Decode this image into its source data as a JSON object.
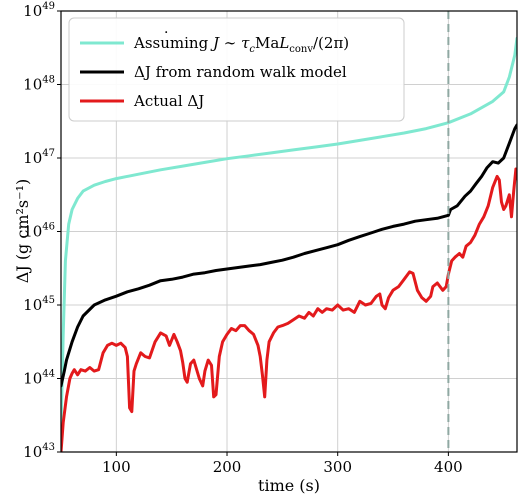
{
  "chart_data": {
    "type": "line",
    "title": "",
    "xlabel": "time (s)",
    "ylabel": "ΔJ (g cm²s⁻¹)",
    "xlim": [
      50,
      462
    ],
    "ylim_log10": [
      43,
      49
    ],
    "y_scale": "log",
    "grid": true,
    "legend_position": "top-left",
    "x_ticks": [
      100,
      200,
      300,
      400
    ],
    "y_ticks": [
      {
        "exp": 43,
        "label": "10",
        "sup": "43"
      },
      {
        "exp": 44,
        "label": "10",
        "sup": "44"
      },
      {
        "exp": 45,
        "label": "10",
        "sup": "45"
      },
      {
        "exp": 46,
        "label": "10",
        "sup": "46"
      },
      {
        "exp": 47,
        "label": "10",
        "sup": "47"
      },
      {
        "exp": 48,
        "label": "10",
        "sup": "48"
      },
      {
        "exp": 49,
        "label": "10",
        "sup": "49"
      }
    ],
    "vline": {
      "x": 400,
      "color": "#8fa8a2",
      "style": "dashed"
    },
    "series": [
      {
        "name": "Assuming J̇ ∼ τcMaLconv/(2π)",
        "color": "#7fe8d0",
        "points": [
          [
            50,
            43.3
          ],
          [
            52,
            44.6
          ],
          [
            54,
            45.6
          ],
          [
            57,
            46.1
          ],
          [
            60,
            46.3
          ],
          [
            65,
            46.45
          ],
          [
            70,
            46.55
          ],
          [
            80,
            46.63
          ],
          [
            90,
            46.68
          ],
          [
            100,
            46.72
          ],
          [
            120,
            46.78
          ],
          [
            140,
            46.84
          ],
          [
            160,
            46.89
          ],
          [
            180,
            46.94
          ],
          [
            200,
            46.99
          ],
          [
            220,
            47.03
          ],
          [
            240,
            47.07
          ],
          [
            260,
            47.11
          ],
          [
            280,
            47.15
          ],
          [
            300,
            47.19
          ],
          [
            320,
            47.24
          ],
          [
            340,
            47.29
          ],
          [
            360,
            47.34
          ],
          [
            380,
            47.4
          ],
          [
            400,
            47.48
          ],
          [
            420,
            47.6
          ],
          [
            440,
            47.77
          ],
          [
            450,
            47.9
          ],
          [
            455,
            48.1
          ],
          [
            460,
            48.4
          ],
          [
            462,
            48.63
          ]
        ]
      },
      {
        "name": "ΔJ from random walk model",
        "color": "#000000",
        "points": [
          [
            50,
            43.9
          ],
          [
            53,
            44.1
          ],
          [
            55,
            44.25
          ],
          [
            60,
            44.5
          ],
          [
            65,
            44.7
          ],
          [
            70,
            44.85
          ],
          [
            80,
            45.0
          ],
          [
            90,
            45.07
          ],
          [
            100,
            45.12
          ],
          [
            110,
            45.18
          ],
          [
            120,
            45.22
          ],
          [
            130,
            45.27
          ],
          [
            140,
            45.33
          ],
          [
            150,
            45.35
          ],
          [
            160,
            45.38
          ],
          [
            170,
            45.42
          ],
          [
            180,
            45.44
          ],
          [
            190,
            45.47
          ],
          [
            200,
            45.49
          ],
          [
            210,
            45.51
          ],
          [
            220,
            45.53
          ],
          [
            230,
            45.55
          ],
          [
            240,
            45.58
          ],
          [
            250,
            45.61
          ],
          [
            260,
            45.65
          ],
          [
            270,
            45.7
          ],
          [
            280,
            45.74
          ],
          [
            290,
            45.78
          ],
          [
            300,
            45.82
          ],
          [
            310,
            45.88
          ],
          [
            320,
            45.93
          ],
          [
            330,
            45.98
          ],
          [
            340,
            46.03
          ],
          [
            350,
            46.07
          ],
          [
            360,
            46.1
          ],
          [
            370,
            46.14
          ],
          [
            380,
            46.16
          ],
          [
            390,
            46.18
          ],
          [
            400,
            46.22
          ],
          [
            402,
            46.3
          ],
          [
            408,
            46.35
          ],
          [
            415,
            46.48
          ],
          [
            420,
            46.55
          ],
          [
            425,
            46.65
          ],
          [
            430,
            46.75
          ],
          [
            435,
            46.87
          ],
          [
            440,
            46.95
          ],
          [
            445,
            46.93
          ],
          [
            450,
            47.0
          ],
          [
            455,
            47.2
          ],
          [
            460,
            47.4
          ],
          [
            462,
            47.45
          ]
        ]
      },
      {
        "name": "Actual ΔJ",
        "color": "#e31a1c",
        "points": [
          [
            50,
            43.0
          ],
          [
            52,
            43.4
          ],
          [
            55,
            43.75
          ],
          [
            58,
            44.0
          ],
          [
            60,
            44.07
          ],
          [
            62,
            44.12
          ],
          [
            65,
            44.05
          ],
          [
            68,
            44.12
          ],
          [
            72,
            44.1
          ],
          [
            76,
            44.15
          ],
          [
            80,
            44.1
          ],
          [
            84,
            44.12
          ],
          [
            88,
            44.35
          ],
          [
            92,
            44.45
          ],
          [
            96,
            44.48
          ],
          [
            100,
            44.45
          ],
          [
            104,
            44.48
          ],
          [
            108,
            44.42
          ],
          [
            110,
            44.3
          ],
          [
            112,
            43.6
          ],
          [
            114,
            43.55
          ],
          [
            116,
            44.1
          ],
          [
            118,
            44.2
          ],
          [
            122,
            44.35
          ],
          [
            126,
            44.3
          ],
          [
            130,
            44.28
          ],
          [
            135,
            44.5
          ],
          [
            140,
            44.62
          ],
          [
            145,
            44.58
          ],
          [
            148,
            44.45
          ],
          [
            152,
            44.6
          ],
          [
            155,
            44.5
          ],
          [
            158,
            44.38
          ],
          [
            160,
            44.22
          ],
          [
            162,
            44.0
          ],
          [
            164,
            43.95
          ],
          [
            167,
            44.2
          ],
          [
            170,
            44.25
          ],
          [
            175,
            44.0
          ],
          [
            178,
            43.9
          ],
          [
            180,
            44.1
          ],
          [
            183,
            44.25
          ],
          [
            186,
            44.18
          ],
          [
            188,
            43.75
          ],
          [
            190,
            43.78
          ],
          [
            193,
            44.3
          ],
          [
            196,
            44.5
          ],
          [
            200,
            44.6
          ],
          [
            204,
            44.68
          ],
          [
            208,
            44.65
          ],
          [
            212,
            44.72
          ],
          [
            216,
            44.72
          ],
          [
            220,
            44.65
          ],
          [
            224,
            44.6
          ],
          [
            228,
            44.45
          ],
          [
            230,
            44.3
          ],
          [
            232,
            44.05
          ],
          [
            234,
            43.75
          ],
          [
            236,
            44.25
          ],
          [
            238,
            44.5
          ],
          [
            242,
            44.62
          ],
          [
            246,
            44.7
          ],
          [
            250,
            44.72
          ],
          [
            255,
            44.75
          ],
          [
            260,
            44.8
          ],
          [
            265,
            44.85
          ],
          [
            270,
            44.82
          ],
          [
            274,
            44.9
          ],
          [
            278,
            44.85
          ],
          [
            282,
            44.95
          ],
          [
            286,
            44.9
          ],
          [
            290,
            44.95
          ],
          [
            295,
            44.93
          ],
          [
            300,
            45.0
          ],
          [
            305,
            44.93
          ],
          [
            310,
            44.95
          ],
          [
            315,
            44.9
          ],
          [
            320,
            45.05
          ],
          [
            325,
            45.0
          ],
          [
            330,
            45.02
          ],
          [
            335,
            45.12
          ],
          [
            338,
            45.15
          ],
          [
            340,
            45.0
          ],
          [
            343,
            44.95
          ],
          [
            346,
            45.1
          ],
          [
            350,
            45.2
          ],
          [
            355,
            45.25
          ],
          [
            360,
            45.35
          ],
          [
            365,
            45.45
          ],
          [
            368,
            45.43
          ],
          [
            372,
            45.2
          ],
          [
            376,
            45.1
          ],
          [
            380,
            45.05
          ],
          [
            384,
            45.12
          ],
          [
            386,
            45.25
          ],
          [
            390,
            45.3
          ],
          [
            395,
            45.2
          ],
          [
            398,
            45.25
          ],
          [
            400,
            45.42
          ],
          [
            403,
            45.6
          ],
          [
            406,
            45.65
          ],
          [
            410,
            45.7
          ],
          [
            413,
            45.65
          ],
          [
            416,
            45.8
          ],
          [
            420,
            45.85
          ],
          [
            424,
            45.95
          ],
          [
            428,
            46.1
          ],
          [
            432,
            46.2
          ],
          [
            436,
            46.35
          ],
          [
            440,
            46.6
          ],
          [
            444,
            46.75
          ],
          [
            446,
            46.7
          ],
          [
            448,
            46.4
          ],
          [
            450,
            46.3
          ],
          [
            452,
            46.35
          ],
          [
            455,
            46.5
          ],
          [
            457,
            46.2
          ],
          [
            459,
            46.55
          ],
          [
            461,
            46.85
          ],
          [
            462,
            46.72
          ]
        ]
      }
    ]
  },
  "legend": {
    "item1_prefix": "Assuming ",
    "item1_j": "J",
    "item1_mid": " ∼ ",
    "item1_tau": "τ",
    "item1_c": "c",
    "item1_ma": "Ma",
    "item1_L": "L",
    "item1_conv": "conv",
    "item1_suffix": "/(2π)",
    "item2": "ΔJ from random walk model",
    "item3": "Actual ΔJ"
  }
}
